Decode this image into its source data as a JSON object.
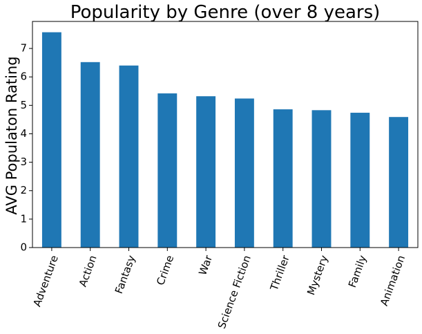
{
  "chart_data": {
    "type": "bar",
    "title": "Popularity by Genre (over 8 years)",
    "xlabel": "",
    "ylabel": "AVG Populaton Rating",
    "categories": [
      "Adventure",
      "Action",
      "Fantasy",
      "Crime",
      "War",
      "Science Fiction",
      "Thriller",
      "Mystery",
      "Family",
      "Animation"
    ],
    "values": [
      7.57,
      6.52,
      6.4,
      5.42,
      5.32,
      5.24,
      4.86,
      4.83,
      4.74,
      4.59
    ],
    "ylim": [
      0,
      7.95
    ],
    "yticks": [
      "0",
      "1",
      "2",
      "3",
      "4",
      "5",
      "6",
      "7"
    ],
    "grid": false,
    "bar_color": "#1f77b4"
  }
}
